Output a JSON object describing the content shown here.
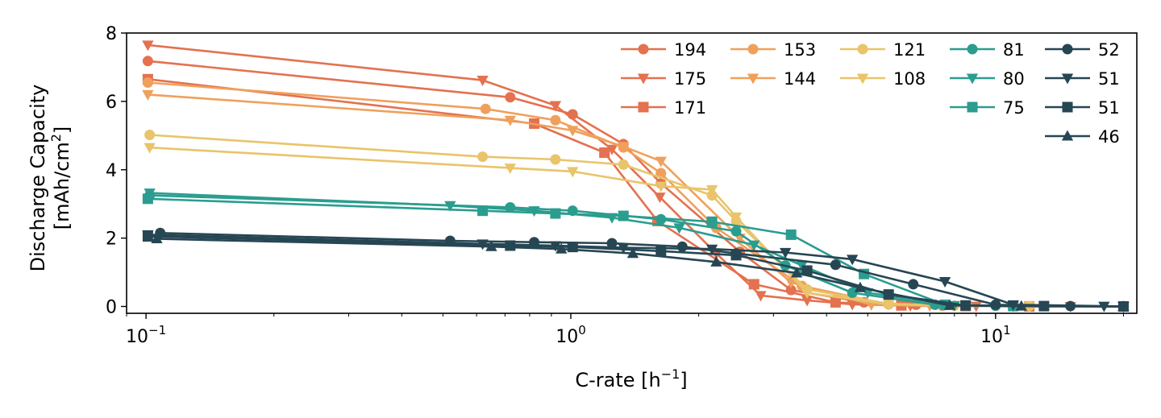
{
  "chart_data": {
    "type": "line",
    "title": "",
    "xlabel": {
      "text": "C-rate [h",
      "sup": "−1",
      "suffix": "]"
    },
    "ylabel": {
      "line1": "Discharge Capacity",
      "line2_text": "[mAh/cm",
      "line2_sup": "2",
      "line2_suffix": "]"
    },
    "xscale": "log",
    "xlim": [
      0.09,
      21.5
    ],
    "ylim": [
      -0.2,
      8
    ],
    "grid": false,
    "legend_placement": "top-right",
    "legend_columns": 5,
    "x_ticks": [
      {
        "value": 0.1,
        "base": "10",
        "exp": "−1"
      },
      {
        "value": 1,
        "base": "10",
        "exp": "0"
      },
      {
        "value": 10,
        "base": "10",
        "exp": "1"
      }
    ],
    "y_ticks": [
      0,
      2,
      4,
      6,
      8
    ],
    "series": [
      {
        "name": "194",
        "color": "#E4714F",
        "marker": "circle",
        "x": [
          0.101,
          0.72,
          1.01,
          1.33,
          1.63,
          2.5,
          3.3,
          4.9,
          6.5,
          10.0,
          13.0,
          20.0
        ],
        "y": [
          7.18,
          6.12,
          5.62,
          4.75,
          3.6,
          1.6,
          0.48,
          0.12,
          0.05,
          0.02,
          0.01,
          0.0
        ]
      },
      {
        "name": "175",
        "color": "#E4714F",
        "marker": "triangle-down",
        "x": [
          0.101,
          0.62,
          0.92,
          1.25,
          1.62,
          2.2,
          2.8,
          3.6,
          4.6,
          6.3,
          9.0,
          15.0,
          20.0
        ],
        "y": [
          7.65,
          6.62,
          5.88,
          4.6,
          3.2,
          1.55,
          0.32,
          0.18,
          0.06,
          0.02,
          0.01,
          0.0,
          0.0
        ]
      },
      {
        "name": "171",
        "color": "#E4714F",
        "marker": "square",
        "x": [
          0.101,
          0.82,
          1.2,
          1.6,
          2.7,
          4.2,
          6.0,
          8.5,
          12.0,
          20.0
        ],
        "y": [
          6.65,
          5.35,
          4.5,
          2.5,
          0.65,
          0.12,
          0.03,
          0.01,
          0.0,
          0.0
        ]
      },
      {
        "name": "153",
        "color": "#F0A05B",
        "marker": "circle",
        "x": [
          0.101,
          0.63,
          0.92,
          1.33,
          1.63,
          2.2,
          3.5,
          5.6,
          7.5,
          11.0,
          20.0
        ],
        "y": [
          6.55,
          5.78,
          5.45,
          4.65,
          3.9,
          2.3,
          0.6,
          0.06,
          0.02,
          0.01,
          0.0
        ]
      },
      {
        "name": "144",
        "color": "#F0A05B",
        "marker": "triangle-down",
        "x": [
          0.101,
          0.72,
          1.01,
          1.33,
          1.63,
          2.5,
          3.3,
          5.1,
          7.0,
          11.0,
          20.0
        ],
        "y": [
          6.2,
          5.45,
          5.15,
          4.68,
          4.25,
          2.0,
          0.7,
          0.05,
          0.02,
          0.01,
          0.0
        ]
      },
      {
        "name": "121",
        "color": "#E9C46A",
        "marker": "circle",
        "x": [
          0.102,
          0.62,
          0.92,
          1.33,
          2.15,
          2.45,
          3.6,
          5.6,
          8.0,
          12.0,
          20.0
        ],
        "y": [
          5.02,
          4.38,
          4.3,
          4.15,
          3.25,
          2.5,
          0.5,
          0.08,
          0.02,
          0.01,
          0.0
        ]
      },
      {
        "name": "108",
        "color": "#E9C46A",
        "marker": "triangle-down",
        "x": [
          0.102,
          0.72,
          1.01,
          1.63,
          2.15,
          2.45,
          3.6,
          5.6,
          8.0,
          12.0,
          20.0
        ],
        "y": [
          4.65,
          4.05,
          3.95,
          3.52,
          3.42,
          2.62,
          0.4,
          0.06,
          0.02,
          0.01,
          0.0
        ]
      },
      {
        "name": "81",
        "color": "#2A9D8F",
        "marker": "circle",
        "x": [
          0.102,
          0.72,
          1.01,
          1.63,
          2.45,
          3.2,
          4.6,
          7.2,
          10.0,
          20.0
        ],
        "y": [
          3.25,
          2.9,
          2.8,
          2.55,
          2.2,
          1.2,
          0.4,
          0.05,
          0.02,
          0.0
        ]
      },
      {
        "name": "80",
        "color": "#2A9D8F",
        "marker": "triangle-down",
        "x": [
          0.102,
          0.52,
          0.82,
          1.25,
          1.8,
          2.7,
          3.5,
          5.0,
          8.0,
          11.0,
          20.0
        ],
        "y": [
          3.32,
          2.95,
          2.8,
          2.6,
          2.3,
          1.8,
          1.2,
          0.4,
          0.03,
          0.01,
          0.0
        ]
      },
      {
        "name": "75",
        "color": "#2A9D8F",
        "marker": "square",
        "x": [
          0.101,
          0.62,
          0.92,
          1.33,
          2.15,
          3.3,
          4.9,
          7.6,
          11.0,
          20.0
        ],
        "y": [
          3.15,
          2.8,
          2.72,
          2.65,
          2.48,
          2.1,
          0.95,
          0.05,
          0.01,
          0.0
        ]
      },
      {
        "name": "52",
        "color": "#264653",
        "marker": "circle",
        "x": [
          0.108,
          0.52,
          0.82,
          1.25,
          1.83,
          2.45,
          4.2,
          6.4,
          10.0,
          15.0,
          20.0
        ],
        "y": [
          2.15,
          1.92,
          1.88,
          1.85,
          1.75,
          1.55,
          1.22,
          0.65,
          0.05,
          0.01,
          0.0
        ]
      },
      {
        "name": "51",
        "color": "#264653",
        "marker": "triangle-down",
        "x": [
          0.101,
          0.62,
          0.92,
          1.33,
          2.15,
          3.2,
          4.6,
          7.6,
          11.0,
          18.0,
          20.0
        ],
        "y": [
          2.1,
          1.83,
          1.78,
          1.72,
          1.68,
          1.58,
          1.38,
          0.73,
          0.05,
          0.01,
          0.0
        ]
      },
      {
        "name": "51",
        "color": "#264653",
        "marker": "square",
        "x": [
          0.101,
          0.72,
          1.01,
          1.63,
          2.45,
          3.6,
          5.6,
          8.5,
          13.0,
          20.0
        ],
        "y": [
          2.05,
          1.78,
          1.74,
          1.62,
          1.5,
          1.05,
          0.35,
          0.03,
          0.01,
          0.0
        ]
      },
      {
        "name": "46",
        "color": "#264653",
        "marker": "triangle-up",
        "x": [
          0.106,
          0.65,
          0.95,
          1.4,
          2.2,
          3.4,
          4.8,
          7.8,
          11.5,
          20.0
        ],
        "y": [
          1.98,
          1.75,
          1.68,
          1.55,
          1.3,
          0.98,
          0.55,
          0.03,
          0.01,
          0.0
        ]
      }
    ]
  }
}
